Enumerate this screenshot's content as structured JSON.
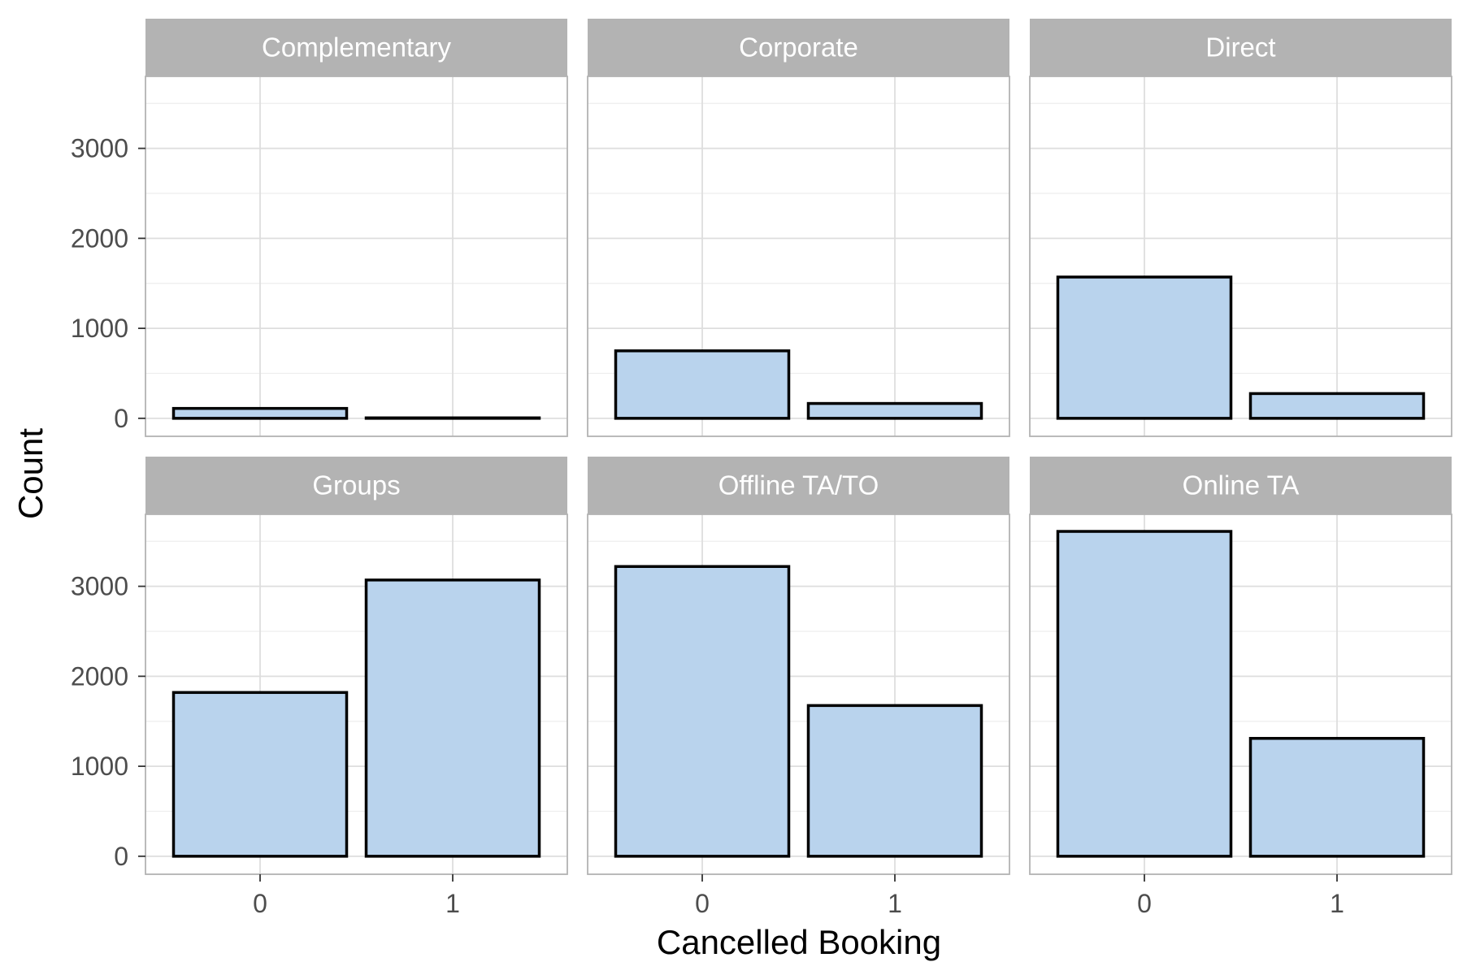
{
  "chart_data": {
    "type": "bar",
    "xlabel": "Cancelled Booking",
    "ylabel": "Count",
    "categories": [
      "0",
      "1"
    ],
    "ylim": [
      -200,
      3800
    ],
    "yticks": [
      0,
      1000,
      2000,
      3000
    ],
    "grid": true,
    "colors": {
      "bar_fill": "#b9d3ed",
      "bar_stroke": "#000000",
      "strip_fill": "#b3b3b3",
      "strip_text": "#ffffff",
      "panel_border": "#b3b3b3",
      "grid_major": "#dedede",
      "grid_minor": "#eeeeee"
    },
    "panels": [
      {
        "label": "Complementary",
        "values": [
          110,
          5
        ]
      },
      {
        "label": "Corporate",
        "values": [
          750,
          165
        ]
      },
      {
        "label": "Direct",
        "values": [
          1570,
          275
        ]
      },
      {
        "label": "Groups",
        "values": [
          1820,
          3070
        ]
      },
      {
        "label": "Offline TA/TO",
        "values": [
          3220,
          1675
        ]
      },
      {
        "label": "Online TA",
        "values": [
          3610,
          1310
        ]
      }
    ]
  }
}
